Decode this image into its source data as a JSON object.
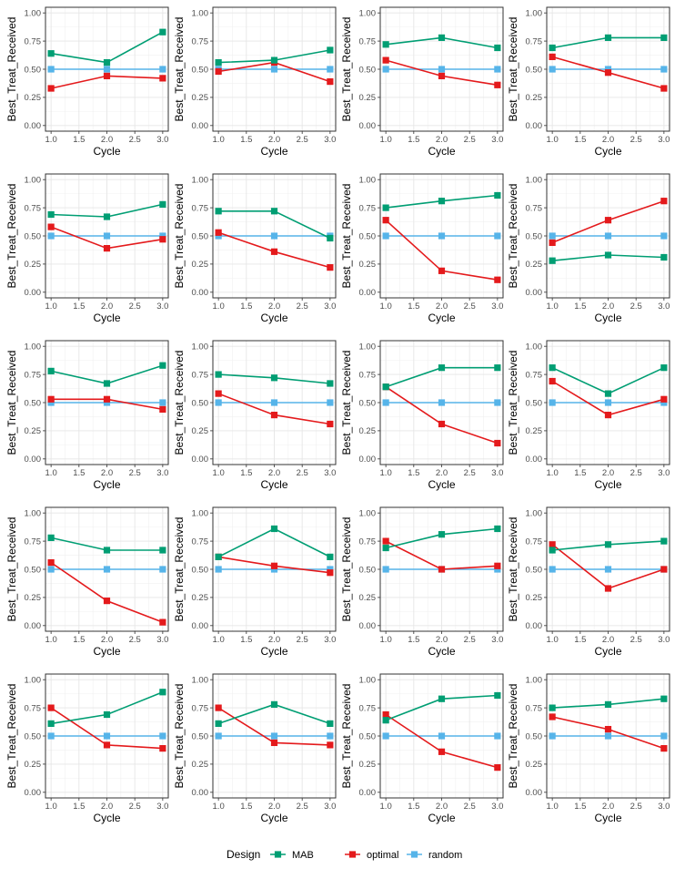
{
  "chart_data": {
    "type": "line",
    "facets": 20,
    "xlabel": "Cycle",
    "ylabel": "Best_Treat_Received",
    "xlim": [
      1,
      3
    ],
    "ylim": [
      0,
      1
    ],
    "x_ticks": [
      "1.0",
      "1.5",
      "2.0",
      "2.5",
      "3.0"
    ],
    "y_ticks": [
      "0.00",
      "0.25",
      "0.50",
      "0.75",
      "1.00"
    ],
    "x": [
      1,
      2,
      3
    ],
    "grid": true,
    "legend": {
      "title": "Design",
      "placement": "bottom",
      "entries": [
        "MAB",
        "optimal",
        "random"
      ]
    },
    "colors": {
      "MAB": "#009E73",
      "optimal": "#E41A1C",
      "random": "#56B4E9"
    },
    "panels": [
      {
        "MAB": [
          0.64,
          0.56,
          0.83
        ],
        "optimal": [
          0.33,
          0.44,
          0.42
        ],
        "random": [
          0.5,
          0.5,
          0.5
        ]
      },
      {
        "MAB": [
          0.56,
          0.58,
          0.67
        ],
        "optimal": [
          0.48,
          0.56,
          0.39
        ],
        "random": [
          0.5,
          0.5,
          0.5
        ]
      },
      {
        "MAB": [
          0.72,
          0.78,
          0.69
        ],
        "optimal": [
          0.58,
          0.44,
          0.36
        ],
        "random": [
          0.5,
          0.5,
          0.5
        ]
      },
      {
        "MAB": [
          0.69,
          0.78,
          0.78
        ],
        "optimal": [
          0.61,
          0.47,
          0.33
        ],
        "random": [
          0.5,
          0.5,
          0.5
        ]
      },
      {
        "MAB": [
          0.69,
          0.67,
          0.78
        ],
        "optimal": [
          0.58,
          0.39,
          0.47
        ],
        "random": [
          0.5,
          0.5,
          0.5
        ]
      },
      {
        "MAB": [
          0.72,
          0.72,
          0.48
        ],
        "optimal": [
          0.53,
          0.36,
          0.22
        ],
        "random": [
          0.5,
          0.5,
          0.5
        ]
      },
      {
        "MAB": [
          0.75,
          0.81,
          0.86
        ],
        "optimal": [
          0.64,
          0.19,
          0.11
        ],
        "random": [
          0.5,
          0.5,
          0.5
        ]
      },
      {
        "MAB": [
          0.28,
          0.33,
          0.31
        ],
        "optimal": [
          0.44,
          0.64,
          0.81
        ],
        "random": [
          0.5,
          0.5,
          0.5
        ]
      },
      {
        "MAB": [
          0.78,
          0.67,
          0.83
        ],
        "optimal": [
          0.53,
          0.53,
          0.44
        ],
        "random": [
          0.5,
          0.5,
          0.5
        ]
      },
      {
        "MAB": [
          0.75,
          0.72,
          0.67
        ],
        "optimal": [
          0.58,
          0.39,
          0.31
        ],
        "random": [
          0.5,
          0.5,
          0.5
        ]
      },
      {
        "MAB": [
          0.64,
          0.81,
          0.81
        ],
        "optimal": [
          0.64,
          0.31,
          0.14
        ],
        "random": [
          0.5,
          0.5,
          0.5
        ]
      },
      {
        "MAB": [
          0.81,
          0.58,
          0.81
        ],
        "optimal": [
          0.69,
          0.39,
          0.53
        ],
        "random": [
          0.5,
          0.5,
          0.5
        ]
      },
      {
        "MAB": [
          0.78,
          0.67,
          0.67
        ],
        "optimal": [
          0.56,
          0.22,
          0.03
        ],
        "random": [
          0.5,
          0.5,
          0.5
        ]
      },
      {
        "MAB": [
          0.61,
          0.86,
          0.61
        ],
        "optimal": [
          0.61,
          0.53,
          0.47
        ],
        "random": [
          0.5,
          0.5,
          0.5
        ]
      },
      {
        "MAB": [
          0.69,
          0.81,
          0.86
        ],
        "optimal": [
          0.75,
          0.5,
          0.53
        ],
        "random": [
          0.5,
          0.5,
          0.5
        ]
      },
      {
        "MAB": [
          0.67,
          0.72,
          0.75
        ],
        "optimal": [
          0.72,
          0.33,
          0.5
        ],
        "random": [
          0.5,
          0.5,
          0.5
        ]
      },
      {
        "MAB": [
          0.61,
          0.69,
          0.89
        ],
        "optimal": [
          0.75,
          0.42,
          0.39
        ],
        "random": [
          0.5,
          0.5,
          0.5
        ]
      },
      {
        "MAB": [
          0.61,
          0.78,
          0.61
        ],
        "optimal": [
          0.75,
          0.44,
          0.42
        ],
        "random": [
          0.5,
          0.5,
          0.5
        ]
      },
      {
        "MAB": [
          0.64,
          0.83,
          0.86
        ],
        "optimal": [
          0.69,
          0.36,
          0.22
        ],
        "random": [
          0.5,
          0.5,
          0.5
        ]
      },
      {
        "MAB": [
          0.75,
          0.78,
          0.83
        ],
        "optimal": [
          0.67,
          0.56,
          0.39
        ],
        "random": [
          0.5,
          0.5,
          0.5
        ]
      }
    ]
  }
}
